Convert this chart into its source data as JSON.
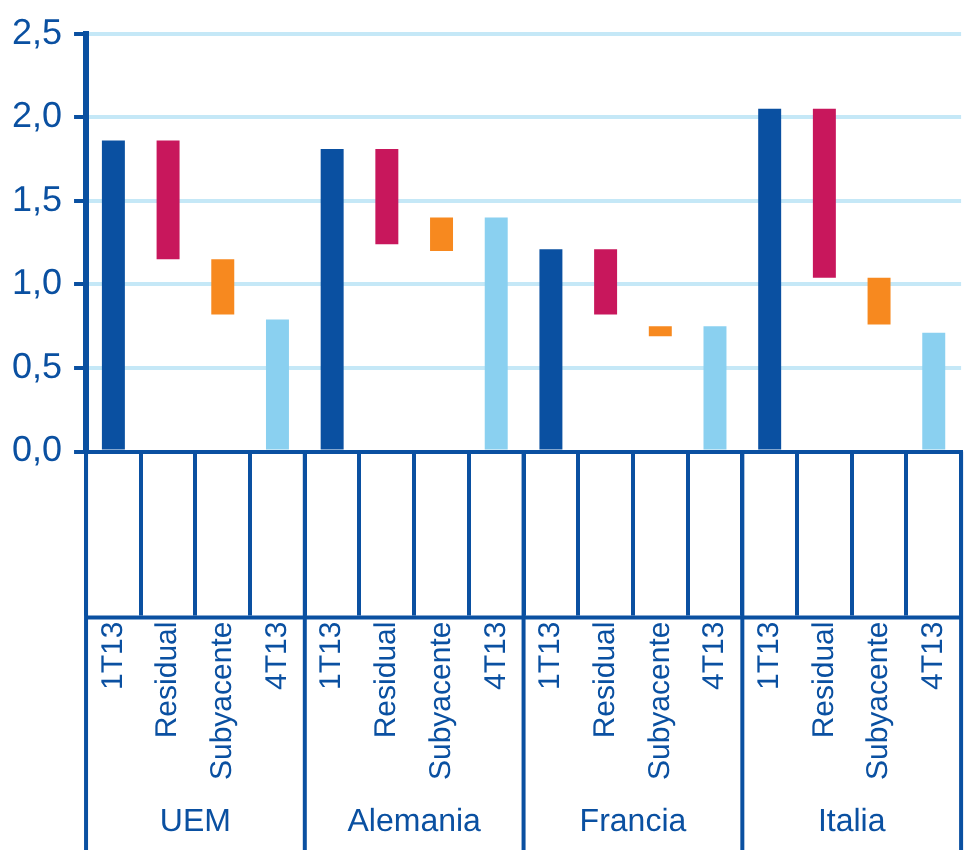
{
  "chart_data": {
    "type": "bar",
    "categories": [
      "1T13",
      "Residual",
      "Subyacente",
      "4T13",
      "1T13",
      "Residual",
      "Subyacente",
      "4T13",
      "1T13",
      "Residual",
      "Subyacente",
      "4T13",
      "1T13",
      "Residual",
      "Subyacente",
      "4T13"
    ],
    "values": [
      1.86,
      -0.71,
      -0.33,
      0.79,
      1.81,
      -0.57,
      -0.2,
      1.4,
      1.21,
      -0.39,
      -0.06,
      0.75,
      2.05,
      -1.01,
      -0.28,
      0.71
    ],
    "base": [
      null,
      1.86,
      1.15,
      null,
      null,
      1.81,
      1.4,
      null,
      null,
      1.21,
      0.75,
      null,
      null,
      2.05,
      1.04,
      null
    ],
    "colors": [
      "#0a50a1",
      "#c8175c",
      "#f7891f",
      "#8ad0f0",
      "#0a50a1",
      "#c8175c",
      "#f7891f",
      "#8ad0f0",
      "#0a50a1",
      "#c8175c",
      "#f7891f",
      "#8ad0f0",
      "#0a50a1",
      "#c8175c",
      "#f7891f",
      "#8ad0f0"
    ],
    "ylim": [
      0,
      2.5
    ],
    "yticks": [
      {
        "value": 0,
        "label": "0,0"
      },
      {
        "value": 0.5,
        "label": "0,5"
      },
      {
        "value": 1,
        "label": "1,0"
      },
      {
        "value": 1.5,
        "label": "1,5"
      },
      {
        "value": 2,
        "label": "2,0"
      },
      {
        "value": 2.5,
        "label": "2,5"
      }
    ],
    "grid": "y",
    "annotations": [
      "UEM",
      "Alemania",
      "Francia",
      "Italia"
    ]
  }
}
